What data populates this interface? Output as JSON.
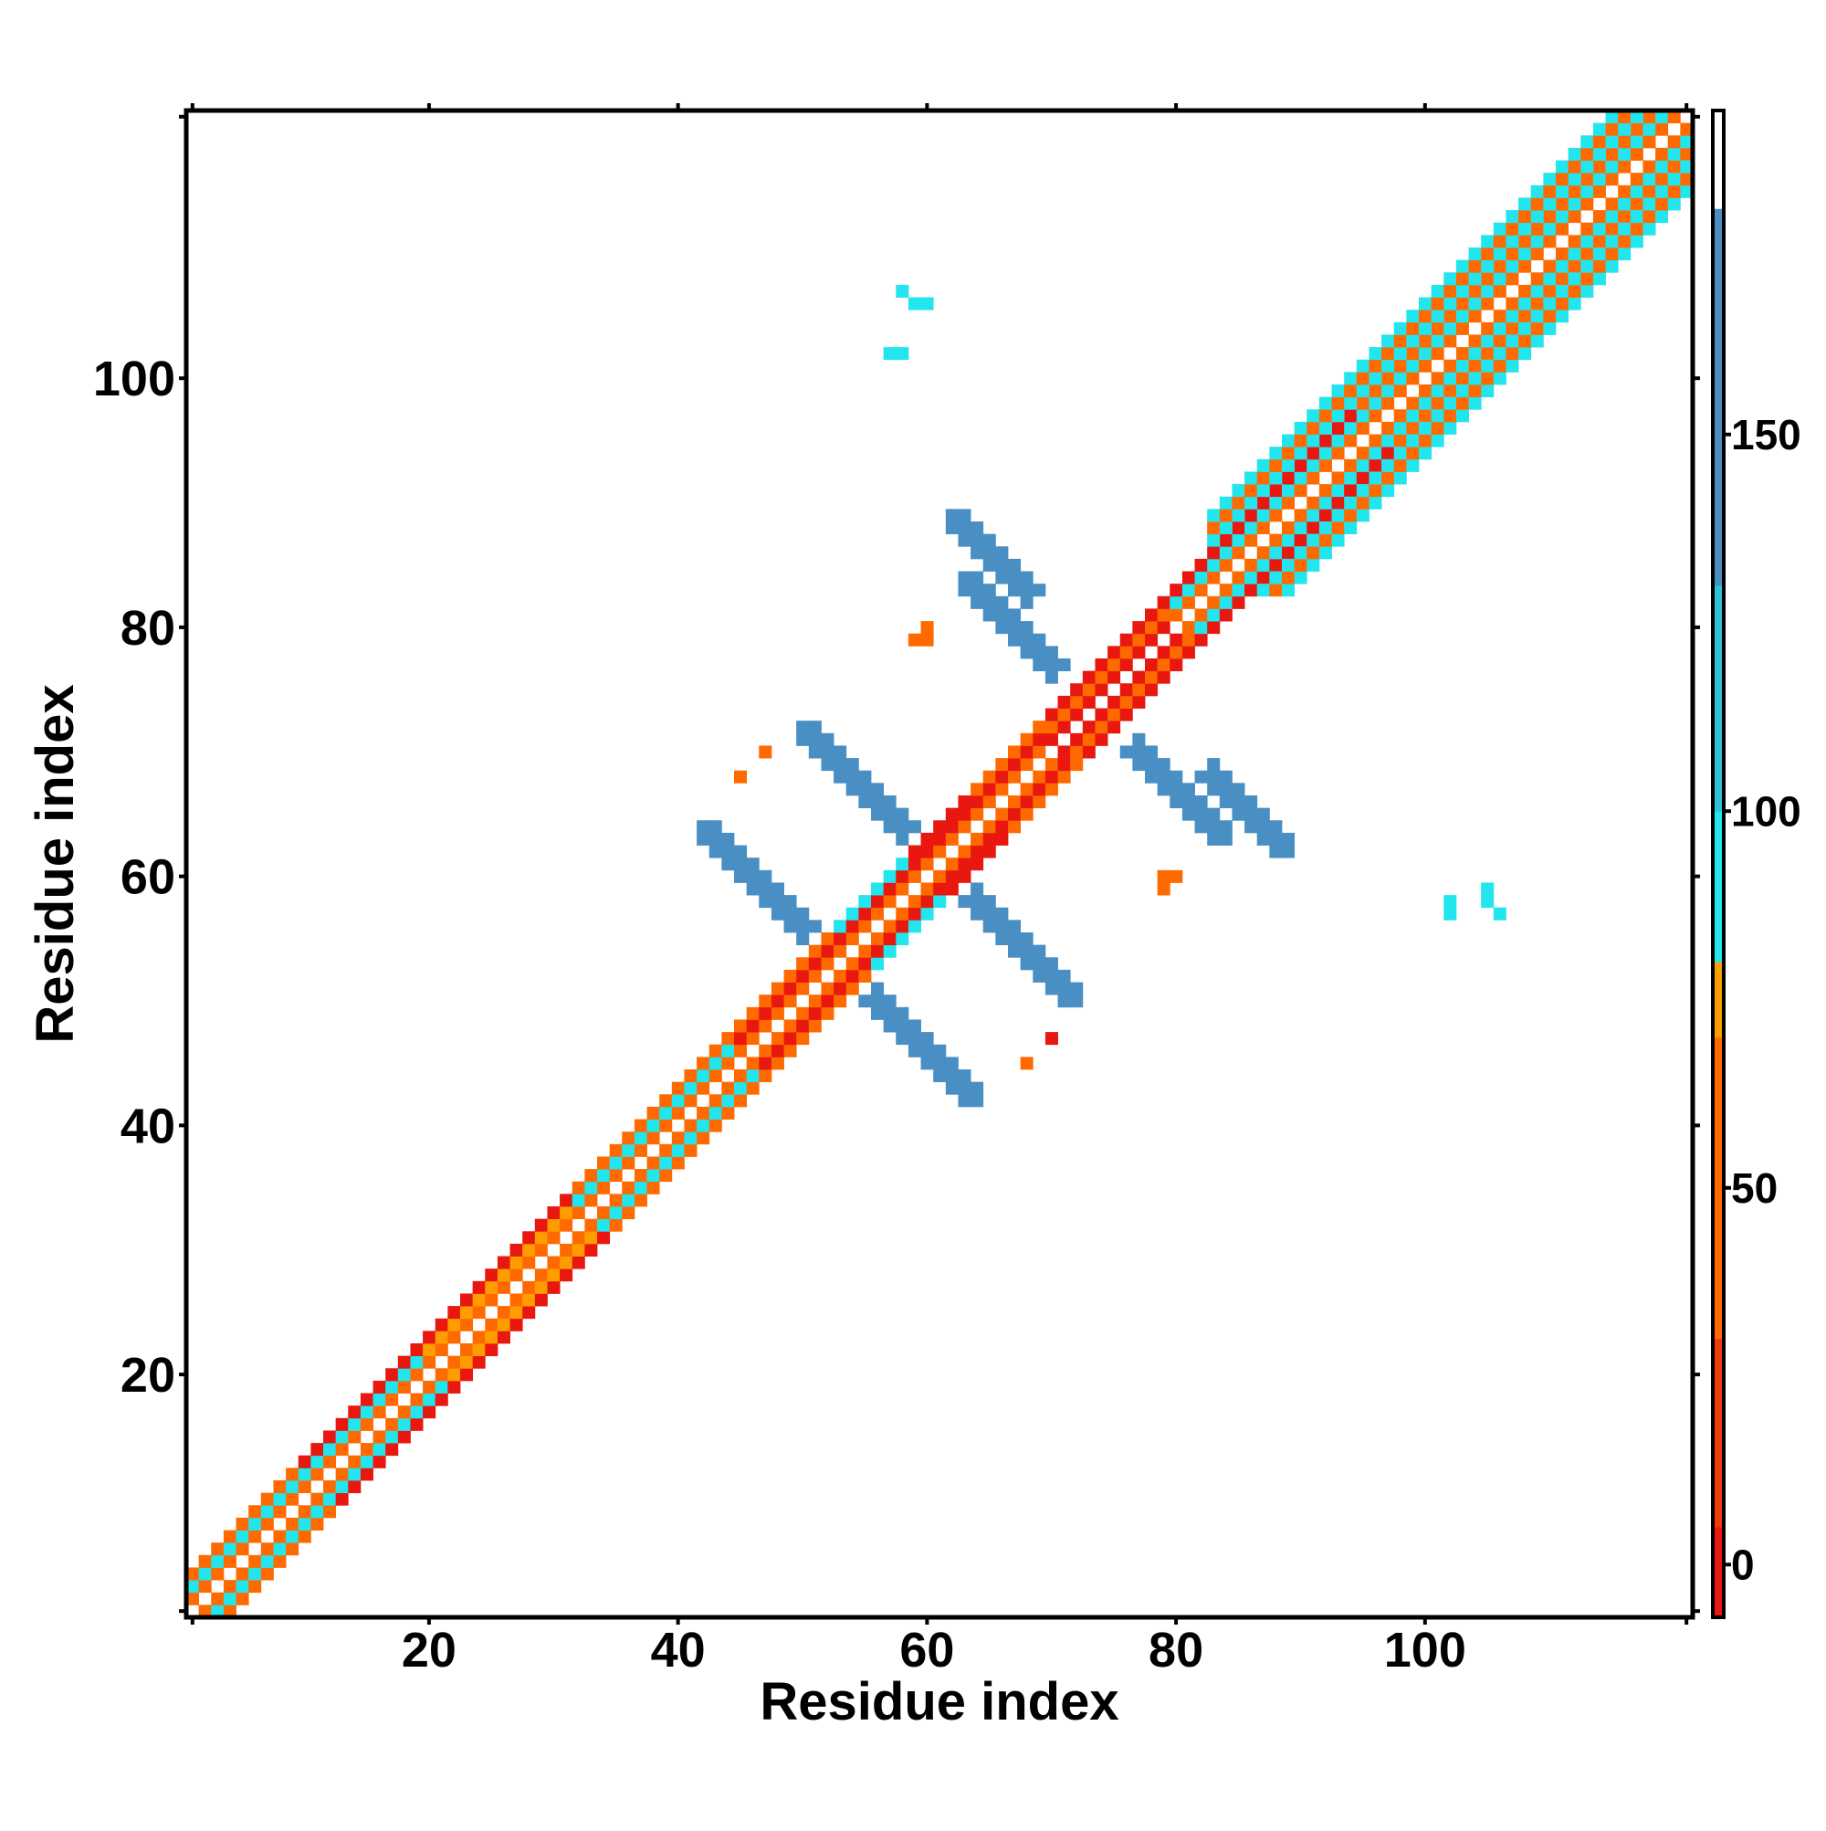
{
  "chart_data": {
    "type": "heatmap",
    "title": "",
    "xlabel": "Residue index",
    "ylabel": "Residue index",
    "xlim": [
      1,
      121
    ],
    "ylim": [
      1,
      121
    ],
    "x_ticks": [
      20,
      40,
      60,
      80,
      100
    ],
    "y_ticks": [
      20,
      40,
      60,
      80,
      100
    ],
    "colorbar": {
      "ticks": [
        0,
        50,
        100,
        150
      ],
      "range": [
        -7,
        193
      ],
      "segments": [
        {
          "from": -7,
          "to": 5,
          "color": "#e8170f"
        },
        {
          "from": 5,
          "to": 30,
          "color": "#ef3a0c"
        },
        {
          "from": 30,
          "to": 70,
          "color": "#ff6a00"
        },
        {
          "from": 70,
          "to": 80,
          "color": "#ff9d00"
        },
        {
          "from": 80,
          "to": 100,
          "color": "#22e5ee"
        },
        {
          "from": 100,
          "to": 130,
          "color": "#2ec0dc"
        },
        {
          "from": 130,
          "to": 180,
          "color": "#4a8fc4"
        },
        {
          "from": 180,
          "to": 193,
          "color": "#ffffff"
        }
      ]
    },
    "colors": {
      "red": "#e8170f",
      "orange": "#ff6a00",
      "amber": "#ff9d00",
      "cyan": "#22e5ee",
      "sky": "#2ec0dc",
      "steel": "#4a8fc4"
    },
    "bands": [
      {
        "from": 1,
        "to": 9,
        "off1": "orange",
        "off2": "cyan",
        "off3": "orange"
      },
      {
        "from": 10,
        "to": 19,
        "off1": "orange",
        "off2": "cyan",
        "off3": "red"
      },
      {
        "from": 20,
        "to": 31,
        "off1": "orange",
        "off2": "amber",
        "off3": "red"
      },
      {
        "from": 32,
        "to": 44,
        "off1": "orange",
        "off2": "cyan",
        "off3": "orange"
      },
      {
        "from": 45,
        "to": 52,
        "off1": "orange",
        "off2": "red",
        "off3": "orange"
      },
      {
        "from": 53,
        "to": 58,
        "off1": "orange",
        "off2": "red",
        "off3": "cyan"
      },
      {
        "from": 59,
        "to": 63,
        "off1": "orange",
        "off2": "red",
        "off3": "red"
      },
      {
        "from": 64,
        "to": 69,
        "off1": "orange",
        "off2": "red",
        "off3": "orange"
      },
      {
        "from": 70,
        "to": 79,
        "off1": "red",
        "off2": "orange",
        "off3": "red"
      },
      {
        "from": 80,
        "to": 94,
        "off1": "orange",
        "off2": "cyan",
        "off3": "red"
      },
      {
        "from": 95,
        "to": 121,
        "off1": "orange",
        "off2": "cyan",
        "off3": "orange"
      }
    ],
    "wide_band": {
      "from": 83,
      "to": 117,
      "off4": "cyan",
      "off5": "orange",
      "off6": "cyan"
    },
    "cross_arms": [
      {
        "i_start": 42,
        "i_end": 50,
        "j_start": 64,
        "j_end": 56,
        "color": "steel"
      },
      {
        "i_start": 50,
        "i_end": 58,
        "j_start": 72,
        "j_end": 64,
        "color": "steel"
      },
      {
        "i_start": 63,
        "i_end": 70,
        "j_start": 84,
        "j_end": 77,
        "color": "steel"
      },
      {
        "i_start": 62,
        "i_end": 68,
        "j_start": 89,
        "j_end": 83,
        "color": "steel"
      }
    ],
    "islands": [
      {
        "x": 58,
        "y": 107,
        "w": 1,
        "h": 1,
        "color": "cyan"
      },
      {
        "x": 59,
        "y": 106,
        "w": 2,
        "h": 1,
        "color": "cyan"
      },
      {
        "x": 57,
        "y": 102,
        "w": 2,
        "h": 1,
        "color": "cyan"
      },
      {
        "x": 60,
        "y": 79,
        "w": 1,
        "h": 2,
        "color": "orange"
      },
      {
        "x": 59,
        "y": 79,
        "w": 1,
        "h": 1,
        "color": "orange"
      },
      {
        "x": 47,
        "y": 70,
        "w": 1,
        "h": 1,
        "color": "orange"
      },
      {
        "x": 45,
        "y": 68,
        "w": 1,
        "h": 1,
        "color": "orange"
      },
      {
        "x": 79,
        "y": 60,
        "w": 2,
        "h": 1,
        "color": "orange"
      },
      {
        "x": 79,
        "y": 59,
        "w": 1,
        "h": 1,
        "color": "orange"
      },
      {
        "x": 70,
        "y": 47,
        "w": 1,
        "h": 1,
        "color": "red"
      },
      {
        "x": 68,
        "y": 45,
        "w": 1,
        "h": 1,
        "color": "orange"
      },
      {
        "x": 102,
        "y": 57,
        "w": 1,
        "h": 2,
        "color": "cyan"
      },
      {
        "x": 105,
        "y": 58,
        "w": 1,
        "h": 2,
        "color": "cyan"
      },
      {
        "x": 106,
        "y": 57,
        "w": 1,
        "h": 1,
        "color": "cyan"
      }
    ]
  }
}
